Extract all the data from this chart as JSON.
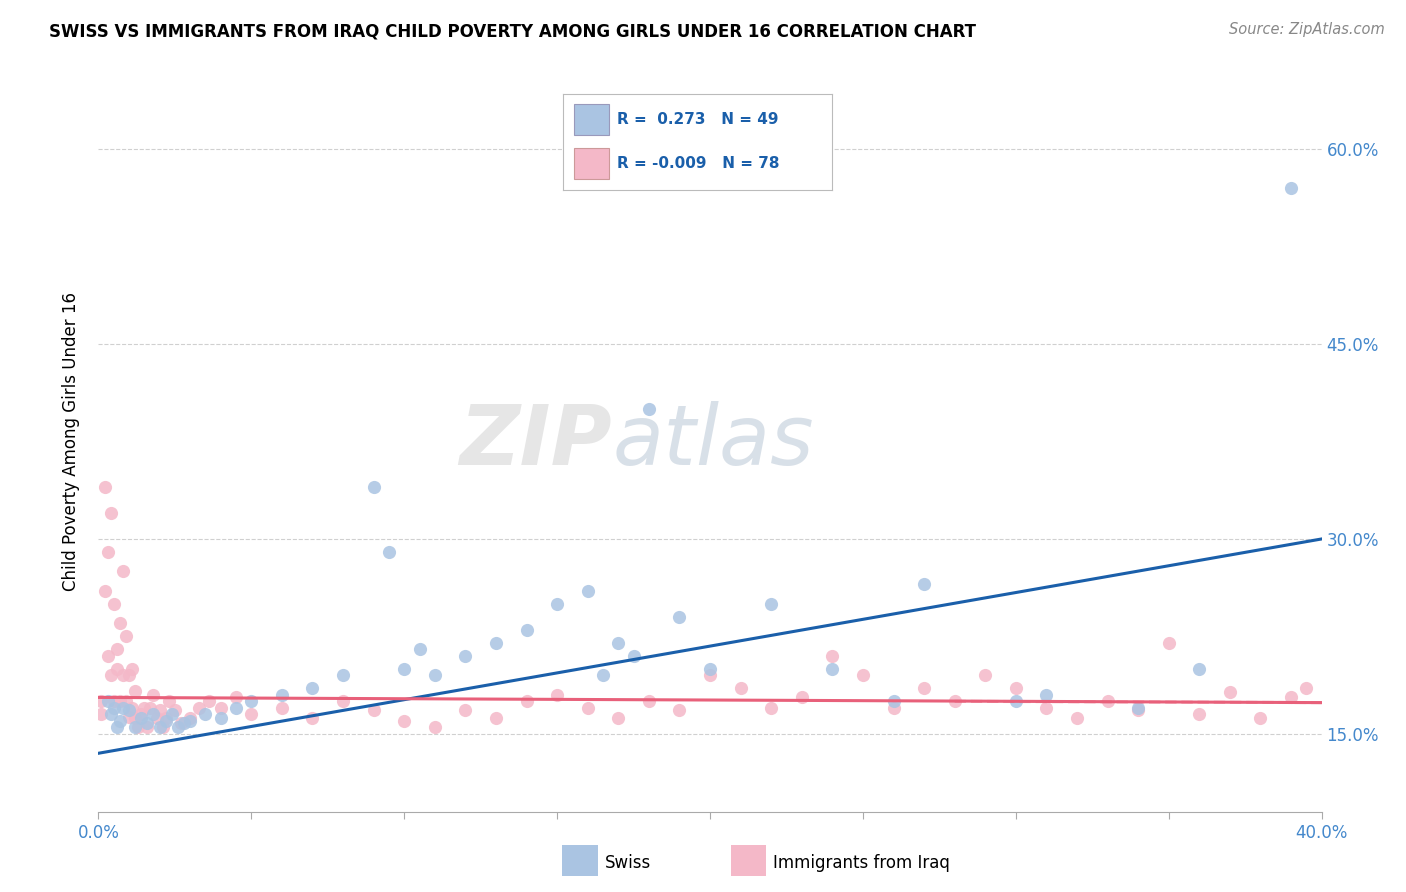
{
  "title": "SWISS VS IMMIGRANTS FROM IRAQ CHILD POVERTY AMONG GIRLS UNDER 16 CORRELATION CHART",
  "source": "Source: ZipAtlas.com",
  "ylabel": "Child Poverty Among Girls Under 16",
  "ytick_values": [
    0.15,
    0.3,
    0.45,
    0.6
  ],
  "ytick_labels": [
    "15.0%",
    "30.0%",
    "45.0%",
    "60.0%"
  ],
  "xlim": [
    0.0,
    0.4
  ],
  "ylim": [
    0.09,
    0.66
  ],
  "watermark_zip": "ZIP",
  "watermark_atlas": "atlas",
  "swiss_color": "#aac4e2",
  "iraq_color": "#f4b8c8",
  "swiss_line_color": "#1a5faa",
  "iraq_line_color": "#e8607a",
  "background_color": "#ffffff",
  "grid_color": "#d0d0d0",
  "swiss_scatter_x": [
    0.003,
    0.004,
    0.005,
    0.006,
    0.007,
    0.008,
    0.01,
    0.012,
    0.014,
    0.016,
    0.018,
    0.02,
    0.022,
    0.024,
    0.026,
    0.028,
    0.03,
    0.035,
    0.04,
    0.045,
    0.05,
    0.06,
    0.07,
    0.08,
    0.09,
    0.095,
    0.1,
    0.105,
    0.11,
    0.12,
    0.13,
    0.14,
    0.15,
    0.16,
    0.165,
    0.17,
    0.175,
    0.18,
    0.19,
    0.2,
    0.22,
    0.24,
    0.26,
    0.27,
    0.3,
    0.31,
    0.34,
    0.36,
    0.39
  ],
  "swiss_scatter_y": [
    0.175,
    0.165,
    0.17,
    0.155,
    0.16,
    0.17,
    0.168,
    0.155,
    0.162,
    0.158,
    0.165,
    0.155,
    0.16,
    0.165,
    0.155,
    0.158,
    0.16,
    0.165,
    0.162,
    0.17,
    0.175,
    0.18,
    0.185,
    0.195,
    0.34,
    0.29,
    0.2,
    0.215,
    0.195,
    0.21,
    0.22,
    0.23,
    0.25,
    0.26,
    0.195,
    0.22,
    0.21,
    0.4,
    0.24,
    0.2,
    0.25,
    0.2,
    0.175,
    0.265,
    0.175,
    0.18,
    0.17,
    0.2,
    0.57
  ],
  "iraq_scatter_x": [
    0.001,
    0.001,
    0.002,
    0.002,
    0.003,
    0.003,
    0.004,
    0.004,
    0.005,
    0.005,
    0.006,
    0.006,
    0.007,
    0.007,
    0.008,
    0.008,
    0.009,
    0.009,
    0.01,
    0.01,
    0.011,
    0.011,
    0.012,
    0.012,
    0.013,
    0.014,
    0.015,
    0.016,
    0.017,
    0.018,
    0.019,
    0.02,
    0.021,
    0.022,
    0.023,
    0.025,
    0.027,
    0.03,
    0.033,
    0.036,
    0.04,
    0.045,
    0.05,
    0.06,
    0.07,
    0.08,
    0.09,
    0.1,
    0.11,
    0.12,
    0.13,
    0.14,
    0.15,
    0.16,
    0.17,
    0.18,
    0.19,
    0.2,
    0.21,
    0.22,
    0.23,
    0.24,
    0.25,
    0.26,
    0.27,
    0.28,
    0.29,
    0.3,
    0.31,
    0.32,
    0.33,
    0.34,
    0.35,
    0.36,
    0.37,
    0.38,
    0.39,
    0.395
  ],
  "iraq_scatter_y": [
    0.175,
    0.165,
    0.26,
    0.34,
    0.21,
    0.29,
    0.195,
    0.32,
    0.175,
    0.25,
    0.2,
    0.215,
    0.175,
    0.235,
    0.195,
    0.275,
    0.175,
    0.225,
    0.163,
    0.195,
    0.17,
    0.2,
    0.162,
    0.183,
    0.155,
    0.165,
    0.17,
    0.155,
    0.17,
    0.18,
    0.162,
    0.168,
    0.155,
    0.162,
    0.175,
    0.168,
    0.158,
    0.162,
    0.17,
    0.175,
    0.17,
    0.178,
    0.165,
    0.17,
    0.162,
    0.175,
    0.168,
    0.16,
    0.155,
    0.168,
    0.162,
    0.175,
    0.18,
    0.17,
    0.162,
    0.175,
    0.168,
    0.195,
    0.185,
    0.17,
    0.178,
    0.21,
    0.195,
    0.17,
    0.185,
    0.175,
    0.195,
    0.185,
    0.17,
    0.162,
    0.175,
    0.168,
    0.22,
    0.165,
    0.182,
    0.162,
    0.178,
    0.185
  ]
}
